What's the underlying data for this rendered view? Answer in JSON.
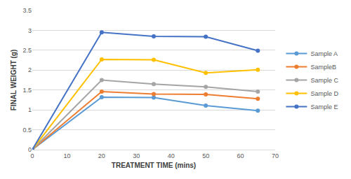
{
  "chart_data": {
    "type": "line",
    "x_label": "TREATMENT TIME (mins)",
    "y_label": "FINAL WEIGHT (g)",
    "x": [
      0,
      20,
      35,
      50,
      65
    ],
    "series": [
      {
        "name": "Sample A",
        "color": "#5b9bd5",
        "values": [
          0,
          1.32,
          1.31,
          1.11,
          0.98
        ]
      },
      {
        "name": "SampleB",
        "color": "#ed7d31",
        "values": [
          0,
          1.46,
          1.4,
          1.39,
          1.28
        ]
      },
      {
        "name": "Sample C",
        "color": "#a5a5a5",
        "values": [
          0,
          1.75,
          1.65,
          1.58,
          1.46
        ]
      },
      {
        "name": "Sample D",
        "color": "#ffc000",
        "values": [
          0,
          2.27,
          2.26,
          1.93,
          2.01
        ]
      },
      {
        "name": "Sample E",
        "color": "#4472c4",
        "values": [
          0,
          2.95,
          2.85,
          2.84,
          2.49
        ]
      }
    ],
    "xlim": [
      0,
      70
    ],
    "xticks": [
      0,
      10,
      20,
      30,
      40,
      50,
      60,
      70
    ],
    "ylim": [
      0,
      3.5
    ],
    "yticks": [
      0,
      0.5,
      1,
      1.5,
      2,
      2.5,
      3,
      3.5
    ],
    "grid": true,
    "legend": "right",
    "marker": "circle"
  }
}
